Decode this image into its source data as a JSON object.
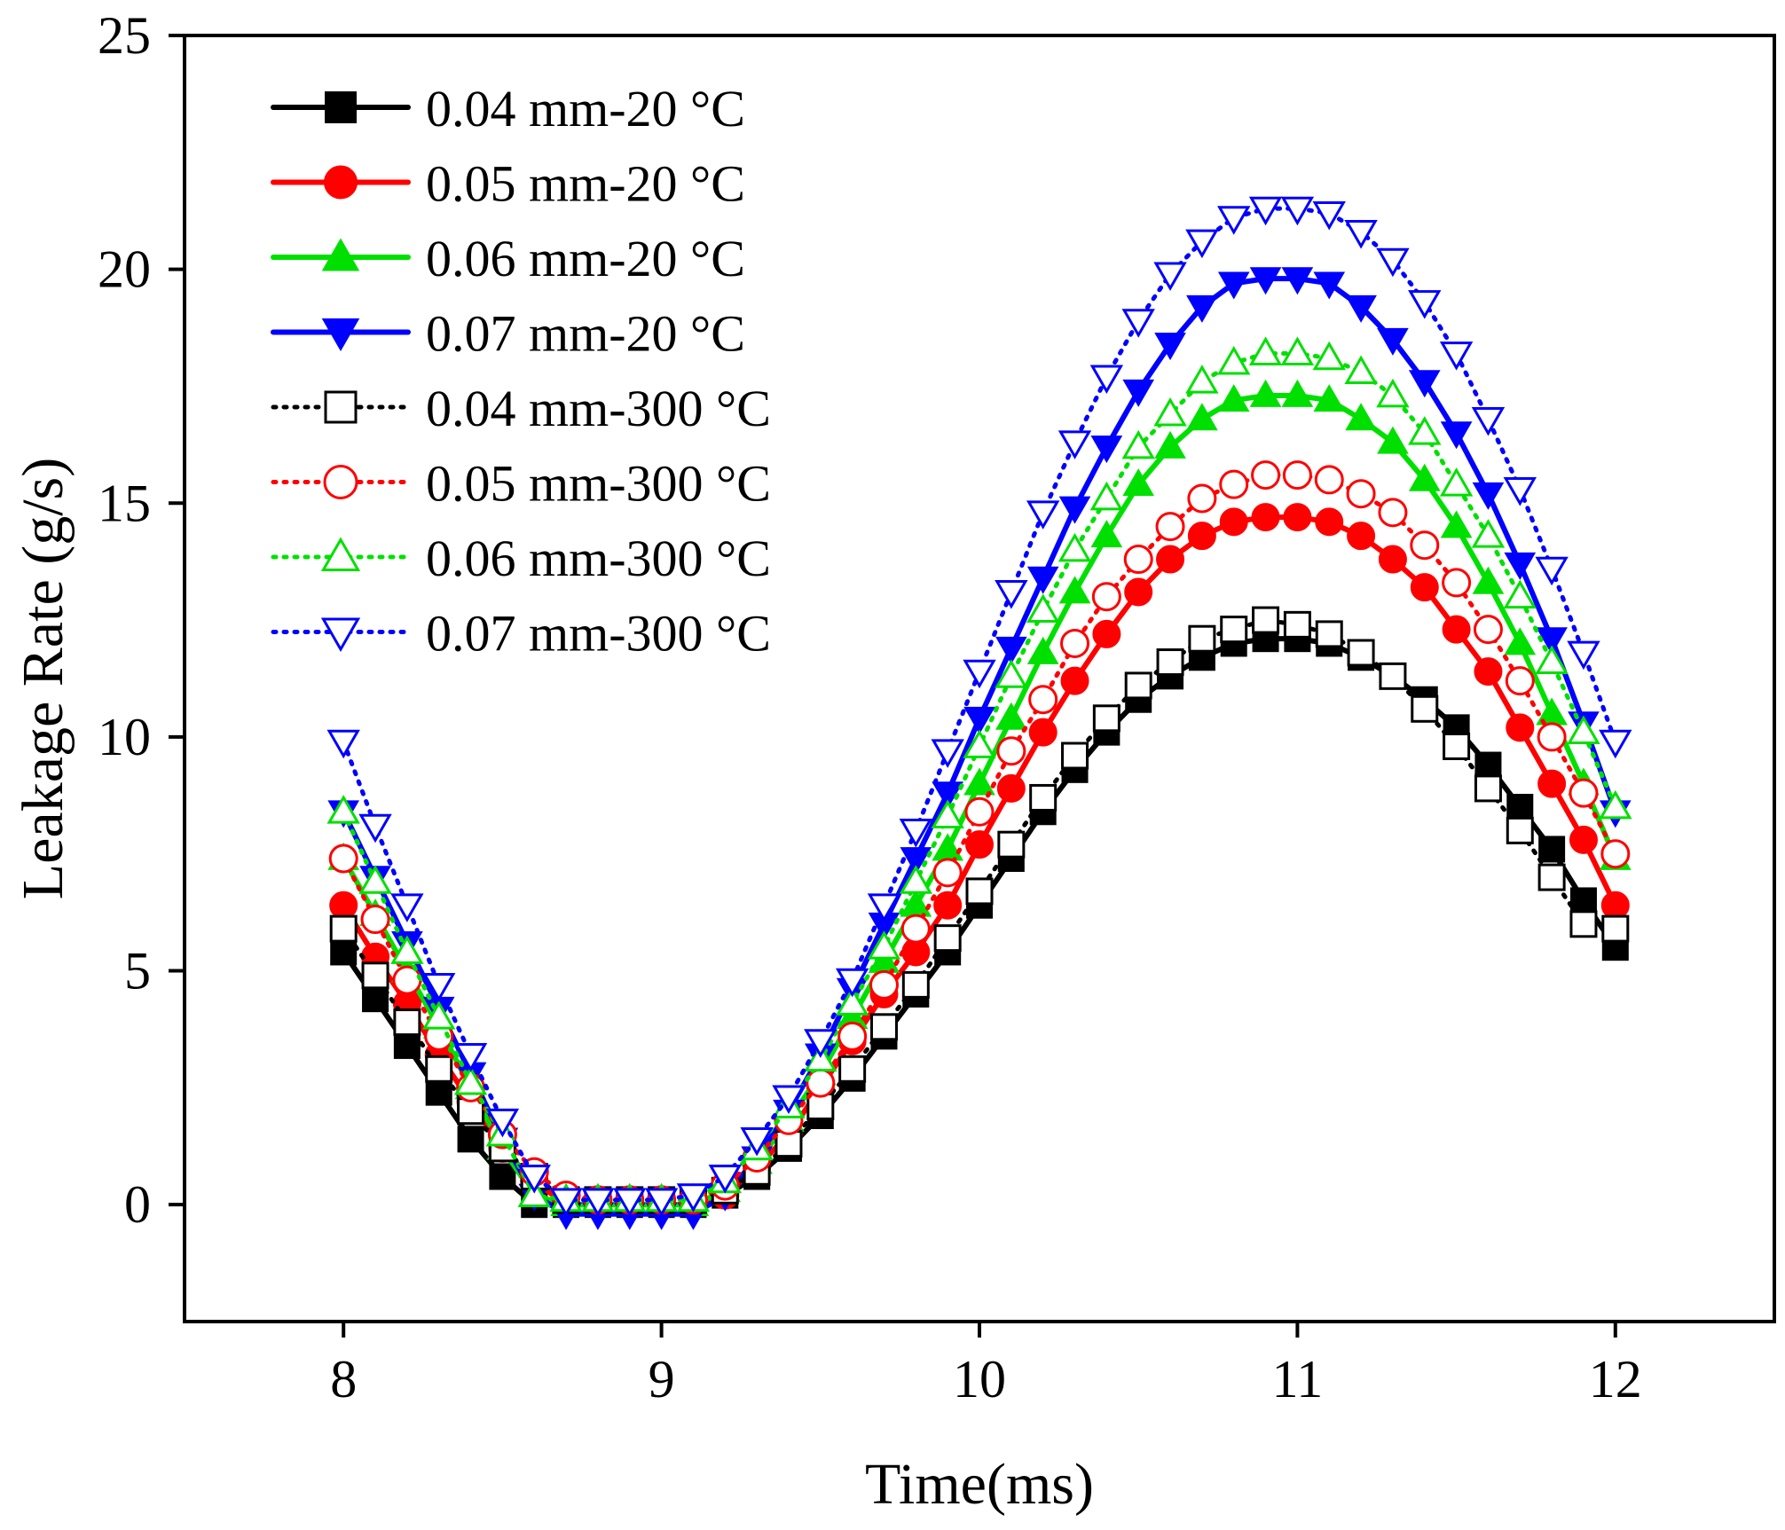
{
  "chart_data": {
    "type": "line",
    "title": "",
    "xlabel": "Time(ms)",
    "ylabel": "Leakage Rate (g/s)",
    "xlim": [
      7.5,
      12.5
    ],
    "ylim": [
      -2.5,
      25
    ],
    "xticks": [
      8,
      9,
      10,
      11,
      12
    ],
    "xtick_labels": [
      "8",
      "9",
      "10",
      "11",
      "12"
    ],
    "yticks": [
      0,
      5,
      10,
      15,
      20,
      25
    ],
    "ytick_labels": [
      "0",
      "5",
      "10",
      "15",
      "20",
      "25"
    ],
    "grid": false,
    "legend_position": "top-left",
    "x": [
      8.0,
      8.1,
      8.2,
      8.3,
      8.4,
      8.5,
      8.6,
      8.7,
      8.8,
      8.9,
      9.0,
      9.1,
      9.2,
      9.3,
      9.4,
      9.5,
      9.6,
      9.7,
      9.8,
      9.9,
      10.0,
      10.1,
      10.2,
      10.3,
      10.4,
      10.5,
      10.6,
      10.7,
      10.8,
      10.9,
      11.0,
      11.1,
      11.2,
      11.3,
      11.4,
      11.5,
      11.6,
      11.7,
      11.8,
      11.9,
      12.0
    ],
    "series": [
      {
        "name": "0.04 mm-20 °C",
        "color": "#000000",
        "marker": "square",
        "filled": true,
        "line": "solid",
        "values": [
          5.4,
          4.4,
          3.4,
          2.4,
          1.4,
          0.6,
          0.0,
          0.0,
          0.0,
          0.0,
          0.0,
          0.0,
          0.2,
          0.6,
          1.2,
          1.9,
          2.7,
          3.6,
          4.5,
          5.4,
          6.4,
          7.4,
          8.4,
          9.3,
          10.1,
          10.8,
          11.3,
          11.7,
          12.0,
          12.1,
          12.1,
          12.0,
          11.7,
          11.3,
          10.8,
          10.2,
          9.4,
          8.5,
          7.6,
          6.5,
          5.5
        ]
      },
      {
        "name": "0.05 mm-20 °C",
        "color": "#ff0000",
        "marker": "circle",
        "filled": true,
        "line": "solid",
        "values": [
          6.4,
          5.3,
          4.3,
          3.2,
          2.2,
          1.2,
          0.5,
          0.0,
          0.0,
          0.0,
          0.0,
          0.0,
          0.2,
          0.8,
          1.5,
          2.5,
          3.5,
          4.5,
          5.4,
          6.4,
          7.7,
          8.9,
          10.1,
          11.2,
          12.2,
          13.1,
          13.8,
          14.3,
          14.6,
          14.7,
          14.7,
          14.6,
          14.3,
          13.8,
          13.2,
          12.3,
          11.4,
          10.2,
          9.0,
          7.8,
          6.4
        ]
      },
      {
        "name": "0.06 mm-20 °C",
        "color": "#00e000",
        "marker": "triangle-up",
        "filled": true,
        "line": "solid",
        "values": [
          7.4,
          6.2,
          5.0,
          3.8,
          2.5,
          1.2,
          0.2,
          0.0,
          0.0,
          0.0,
          0.0,
          0.0,
          0.3,
          0.9,
          1.8,
          2.8,
          4.0,
          5.2,
          6.4,
          7.6,
          9.0,
          10.4,
          11.8,
          13.1,
          14.3,
          15.4,
          16.2,
          16.8,
          17.2,
          17.3,
          17.3,
          17.2,
          16.8,
          16.3,
          15.5,
          14.5,
          13.3,
          12.0,
          10.5,
          9.0,
          7.4
        ]
      },
      {
        "name": "0.07 mm-20 °C",
        "color": "#0000ff",
        "marker": "triangle-down",
        "filled": true,
        "line": "solid",
        "values": [
          8.4,
          7.0,
          5.6,
          4.2,
          2.8,
          1.4,
          0.2,
          -0.2,
          -0.2,
          -0.2,
          -0.2,
          -0.2,
          0.2,
          1.0,
          2.0,
          3.2,
          4.6,
          6.0,
          7.4,
          8.8,
          10.4,
          11.9,
          13.4,
          14.9,
          16.2,
          17.4,
          18.4,
          19.2,
          19.7,
          19.8,
          19.8,
          19.7,
          19.2,
          18.5,
          17.6,
          16.5,
          15.2,
          13.7,
          12.1,
          10.3,
          8.4
        ]
      },
      {
        "name": "0.04 mm-300 °C",
        "color": "#000000",
        "marker": "square",
        "filled": false,
        "line": "dotted",
        "values": [
          5.9,
          4.9,
          3.9,
          2.9,
          2.0,
          1.2,
          0.6,
          0.1,
          0.1,
          0.1,
          0.1,
          0.1,
          0.3,
          0.7,
          1.3,
          2.1,
          2.9,
          3.8,
          4.7,
          5.7,
          6.7,
          7.7,
          8.7,
          9.6,
          10.4,
          11.1,
          11.6,
          12.1,
          12.3,
          12.5,
          12.4,
          12.2,
          11.8,
          11.3,
          10.6,
          9.8,
          8.9,
          8.0,
          7.0,
          6.0,
          5.9
        ]
      },
      {
        "name": "0.05 mm-300 °C",
        "color": "#ff0000",
        "marker": "circle",
        "filled": false,
        "line": "dotted",
        "values": [
          7.4,
          6.1,
          4.8,
          3.6,
          2.5,
          1.5,
          0.7,
          0.2,
          0.1,
          0.1,
          0.1,
          0.1,
          0.4,
          1.0,
          1.8,
          2.6,
          3.6,
          4.7,
          5.9,
          7.1,
          8.4,
          9.7,
          10.8,
          12.0,
          13.0,
          13.8,
          14.5,
          15.1,
          15.4,
          15.6,
          15.6,
          15.5,
          15.2,
          14.8,
          14.1,
          13.3,
          12.3,
          11.2,
          10.0,
          8.8,
          7.5
        ]
      },
      {
        "name": "0.06 mm-300 °C",
        "color": "#00e000",
        "marker": "triangle-up",
        "filled": false,
        "line": "dotted",
        "values": [
          8.4,
          6.9,
          5.4,
          4.0,
          2.6,
          1.5,
          0.2,
          0.1,
          0.1,
          0.1,
          0.1,
          0.1,
          0.5,
          1.2,
          2.1,
          3.1,
          4.3,
          5.5,
          6.9,
          8.3,
          9.8,
          11.3,
          12.7,
          14.0,
          15.1,
          16.2,
          16.9,
          17.6,
          18.0,
          18.2,
          18.2,
          18.1,
          17.8,
          17.3,
          16.5,
          15.4,
          14.3,
          13.0,
          11.6,
          10.1,
          8.5
        ]
      },
      {
        "name": "0.07 mm-300 °C",
        "color": "#0000ff",
        "marker": "triangle-down",
        "filled": false,
        "line": "dotted",
        "values": [
          9.9,
          8.1,
          6.4,
          4.7,
          3.2,
          1.8,
          0.6,
          0.1,
          0.1,
          0.1,
          0.1,
          0.2,
          0.6,
          1.4,
          2.3,
          3.5,
          4.8,
          6.4,
          8.0,
          9.7,
          11.4,
          13.1,
          14.8,
          16.3,
          17.7,
          18.9,
          19.9,
          20.6,
          21.1,
          21.3,
          21.3,
          21.2,
          20.8,
          20.2,
          19.3,
          18.2,
          16.8,
          15.3,
          13.6,
          11.8,
          9.9
        ]
      }
    ]
  }
}
